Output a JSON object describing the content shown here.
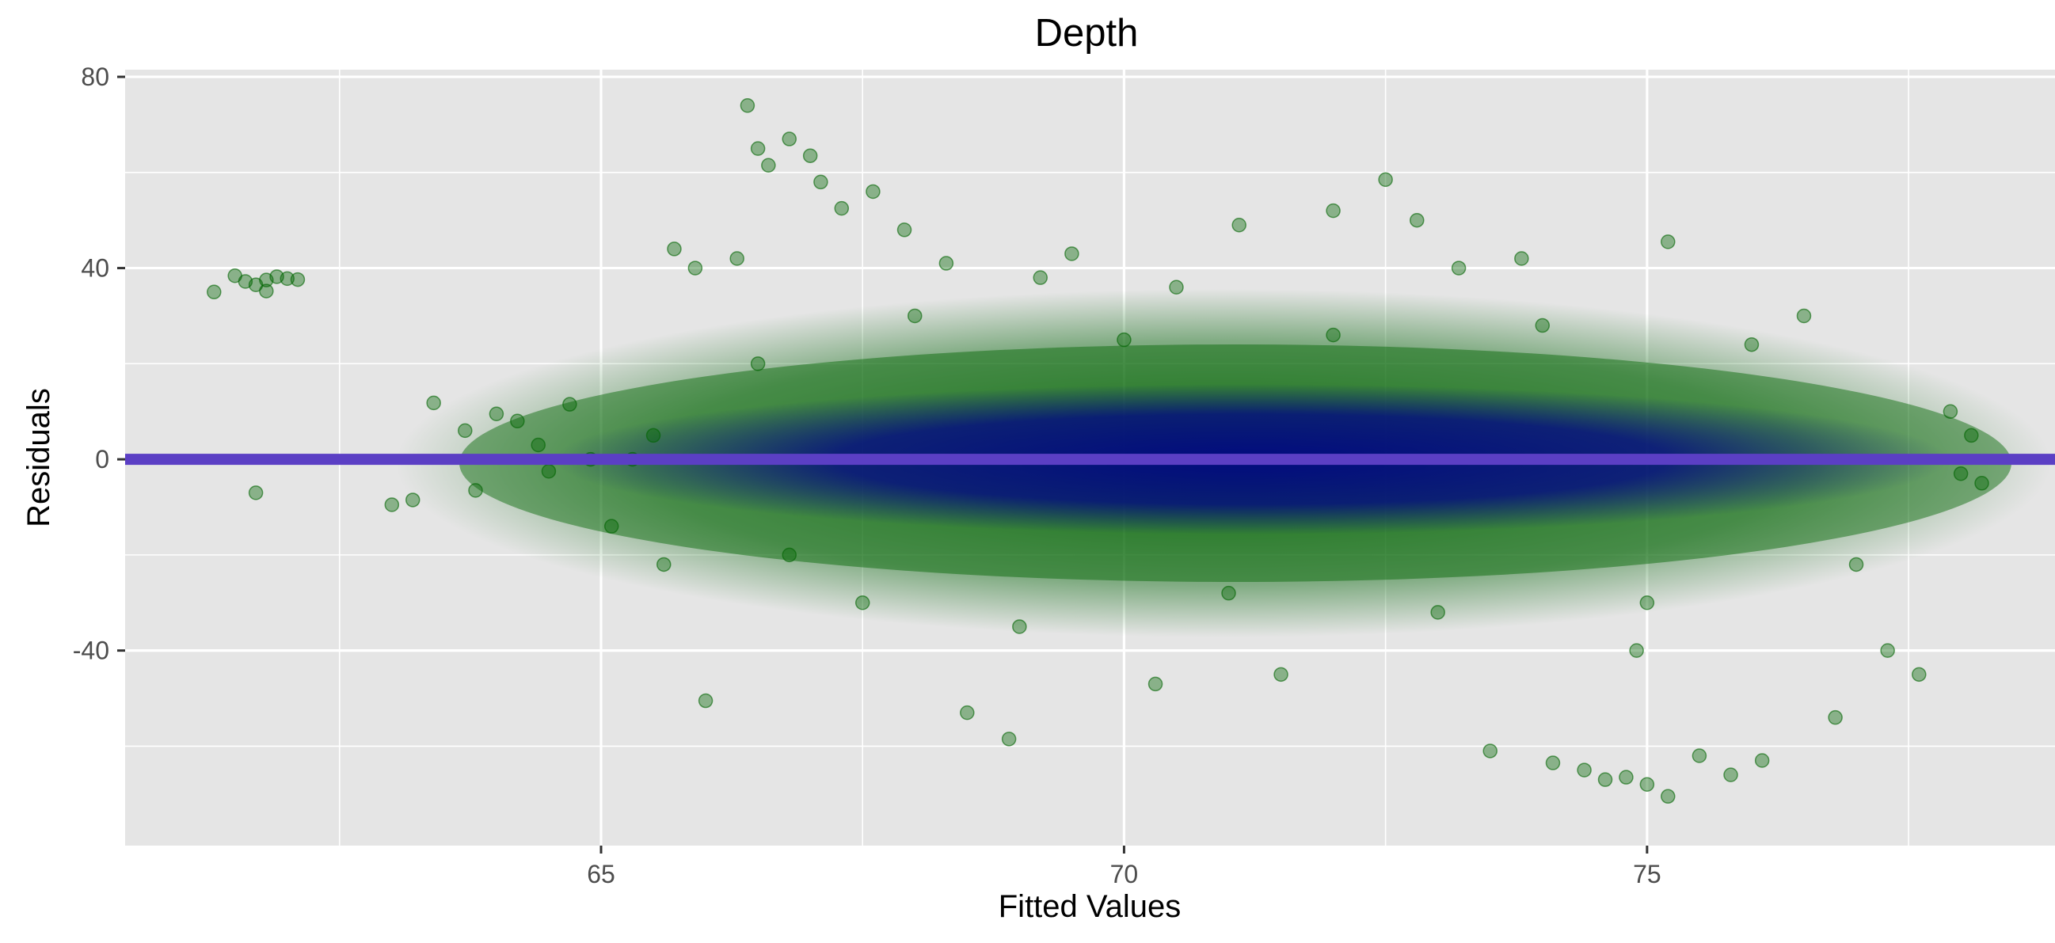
{
  "chart_data": {
    "type": "scatter",
    "title": "Depth",
    "xlabel": "Fitted Values",
    "ylabel": "Residuals",
    "xlim": [
      60.45,
      78.9
    ],
    "ylim": [
      -80.8,
      81.5
    ],
    "x_ticks": [
      65,
      70,
      75
    ],
    "x_tick_labels": [
      "65",
      "70",
      "75"
    ],
    "x_minor_ticks": [
      62.5,
      67.5,
      72.5,
      77.5
    ],
    "y_ticks": [
      80,
      40,
      0,
      -40
    ],
    "y_tick_labels": [
      "80",
      "40",
      "0",
      "-40"
    ],
    "y_minor_ticks": [
      60,
      20,
      -20,
      -60
    ],
    "grid": true,
    "legend": "none",
    "colors": {
      "panel_background": "#e5e5e5",
      "grid": "#ffffff",
      "points": "#006400",
      "dense_core": "#00008b",
      "reference_line": "#5b3fc4"
    },
    "reference_line": {
      "orientation": "horizontal",
      "y": 0
    },
    "series": [
      {
        "points": [
          [
            61.3,
            35.0
          ],
          [
            61.6,
            37.2
          ],
          [
            61.7,
            36.5
          ],
          [
            61.8,
            37.5
          ],
          [
            61.9,
            38.2
          ],
          [
            62.0,
            37.8
          ],
          [
            62.1,
            37.6
          ],
          [
            61.8,
            35.2
          ],
          [
            61.7,
            -7.0
          ],
          [
            61.5,
            38.4
          ],
          [
            63.0,
            -9.5
          ],
          [
            63.2,
            -8.5
          ],
          [
            63.4,
            11.8
          ],
          [
            63.7,
            6.0
          ],
          [
            64.0,
            9.5
          ],
          [
            64.2,
            8.0
          ],
          [
            64.4,
            3.0
          ],
          [
            64.5,
            -2.5
          ],
          [
            64.7,
            11.5
          ],
          [
            64.9,
            0.0
          ],
          [
            63.8,
            -6.5
          ],
          [
            65.1,
            -14.0
          ],
          [
            65.3,
            0.0
          ],
          [
            65.5,
            5.0
          ],
          [
            65.6,
            -22.0
          ],
          [
            65.7,
            44.0
          ],
          [
            65.9,
            40.0
          ],
          [
            66.0,
            -50.5
          ],
          [
            66.3,
            42.0
          ],
          [
            66.4,
            74.0
          ],
          [
            66.5,
            65.0
          ],
          [
            66.6,
            61.5
          ],
          [
            66.8,
            67.0
          ],
          [
            67.0,
            63.5
          ],
          [
            67.1,
            58.0
          ],
          [
            67.3,
            52.5
          ],
          [
            67.6,
            56.0
          ],
          [
            67.9,
            48.0
          ],
          [
            68.5,
            -53.0
          ],
          [
            68.9,
            -58.5
          ],
          [
            69.5,
            43.0
          ],
          [
            70.5,
            36.0
          ],
          [
            71.1,
            49.0
          ],
          [
            72.0,
            52.0
          ],
          [
            72.5,
            58.5
          ],
          [
            72.8,
            50.0
          ],
          [
            73.5,
            -61.0
          ],
          [
            73.8,
            42.0
          ],
          [
            74.1,
            -63.5
          ],
          [
            74.4,
            -65.0
          ],
          [
            74.6,
            -67.0
          ],
          [
            74.8,
            -66.5
          ],
          [
            75.0,
            -68.0
          ],
          [
            75.2,
            -70.5
          ],
          [
            75.5,
            -62.0
          ],
          [
            75.8,
            -66.0
          ],
          [
            75.2,
            45.5
          ],
          [
            76.1,
            -63.0
          ],
          [
            76.8,
            -54.0
          ],
          [
            77.3,
            -40.0
          ],
          [
            77.6,
            -45.0
          ],
          [
            77.9,
            10.0
          ],
          [
            78.1,
            5.0
          ],
          [
            78.2,
            -5.0
          ],
          [
            78.0,
            -3.0
          ],
          [
            67.5,
            -30.0
          ],
          [
            68.0,
            30.0
          ],
          [
            69.0,
            -35.0
          ],
          [
            70.0,
            25.0
          ],
          [
            71.0,
            -28.0
          ],
          [
            72.0,
            26.0
          ],
          [
            73.0,
            -32.0
          ],
          [
            74.0,
            28.0
          ],
          [
            75.0,
            -30.0
          ],
          [
            76.0,
            24.0
          ],
          [
            77.0,
            -22.0
          ],
          [
            66.5,
            20.0
          ],
          [
            66.8,
            -20.0
          ],
          [
            69.2,
            38.0
          ],
          [
            73.2,
            40.0
          ],
          [
            74.9,
            -40.0
          ],
          [
            71.5,
            -45.0
          ],
          [
            70.3,
            -47.0
          ],
          [
            68.3,
            41.0
          ],
          [
            76.5,
            30.0
          ]
        ]
      }
    ]
  }
}
